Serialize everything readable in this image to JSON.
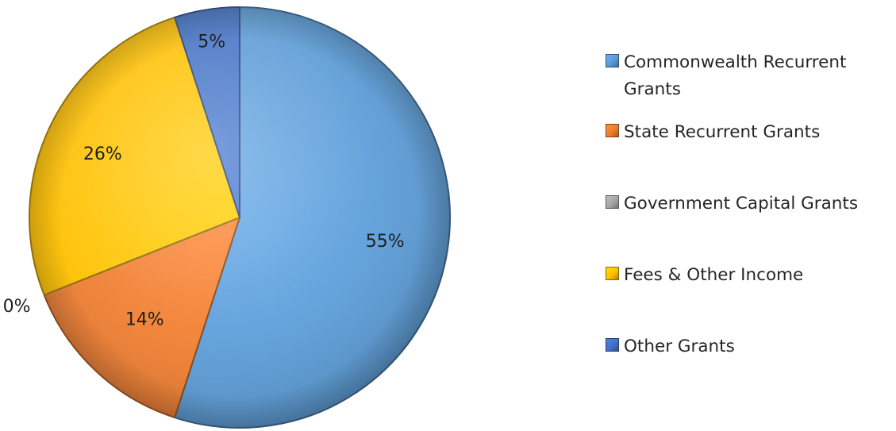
{
  "chart_data": {
    "type": "pie",
    "title": "",
    "series": [
      {
        "slices": [
          {
            "label": "Commonwealth Recurrent Grants",
            "value": 55,
            "display": "55%",
            "color": "#5b9bd5"
          },
          {
            "label": "State Recurrent Grants",
            "value": 14,
            "display": "14%",
            "color": "#ed7d31"
          },
          {
            "label": "Government Capital Grants",
            "value": 0,
            "display": "0%",
            "color": "#a5a5a5"
          },
          {
            "label": "Fees & Other Income",
            "value": 26,
            "display": "26%",
            "color": "#ffc000"
          },
          {
            "label": "Other Grants",
            "value": 5,
            "display": "5%",
            "color": "#4472c4"
          }
        ]
      }
    ],
    "start_angle_deg": 0,
    "direction": "clockwise",
    "style": "3D-bevel",
    "legend_position": "right"
  }
}
